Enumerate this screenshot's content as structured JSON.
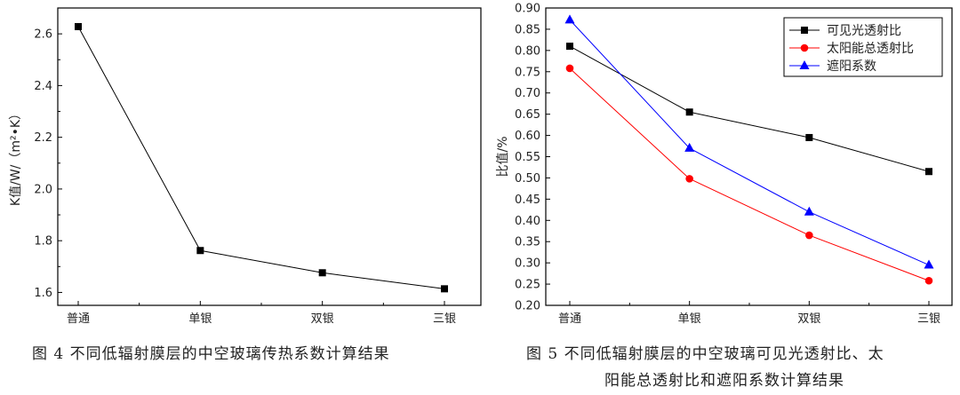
{
  "chart_data": [
    {
      "type": "line",
      "title": "",
      "categories": [
        "普通",
        "单银",
        "双银",
        "三银"
      ],
      "xlabel": "",
      "ylabel": "K值/W/（m²•K）",
      "ylim": [
        1.55,
        2.7
      ],
      "yticks": [
        "1.6",
        "1.8",
        "2.0",
        "2.2",
        "2.4",
        "2.6"
      ],
      "ytick_values": [
        1.6,
        1.8,
        2.0,
        2.2,
        2.4,
        2.6
      ],
      "series": [
        {
          "name": "K值",
          "values": [
            2.628,
            1.762,
            1.676,
            1.614
          ],
          "color": "#000000",
          "marker": "square"
        }
      ],
      "caption": "图 4   不同低辐射膜层的中空玻璃传热系数计算结果"
    },
    {
      "type": "line",
      "title": "",
      "categories": [
        "普通",
        "单银",
        "双银",
        "三银"
      ],
      "xlabel": "",
      "ylabel": "比值/%",
      "ylim": [
        0.2,
        0.9
      ],
      "yticks": [
        "0.20",
        "0.25",
        "0.30",
        "0.35",
        "0.40",
        "0.45",
        "0.50",
        "0.55",
        "0.60",
        "0.65",
        "0.70",
        "0.75",
        "0.80",
        "0.85",
        "0.90"
      ],
      "ytick_values": [
        0.2,
        0.25,
        0.3,
        0.35,
        0.4,
        0.45,
        0.5,
        0.55,
        0.6,
        0.65,
        0.7,
        0.75,
        0.8,
        0.85,
        0.9
      ],
      "legend_position": "top-right",
      "series": [
        {
          "name": "可见光透射比",
          "values": [
            0.81,
            0.655,
            0.595,
            0.515
          ],
          "color": "#000000",
          "marker": "square"
        },
        {
          "name": "太阳能总透射比",
          "values": [
            0.758,
            0.498,
            0.365,
            0.258
          ],
          "color": "#ff0000",
          "marker": "circle"
        },
        {
          "name": "遮阳系数",
          "values": [
            0.872,
            0.57,
            0.42,
            0.295
          ],
          "color": "#0000ff",
          "marker": "triangle"
        }
      ],
      "caption_line1": "图 5   不同低辐射膜层的中空玻璃可见光透射比、太",
      "caption_line2": "阳能总透射比和遮阳系数计算结果"
    }
  ]
}
